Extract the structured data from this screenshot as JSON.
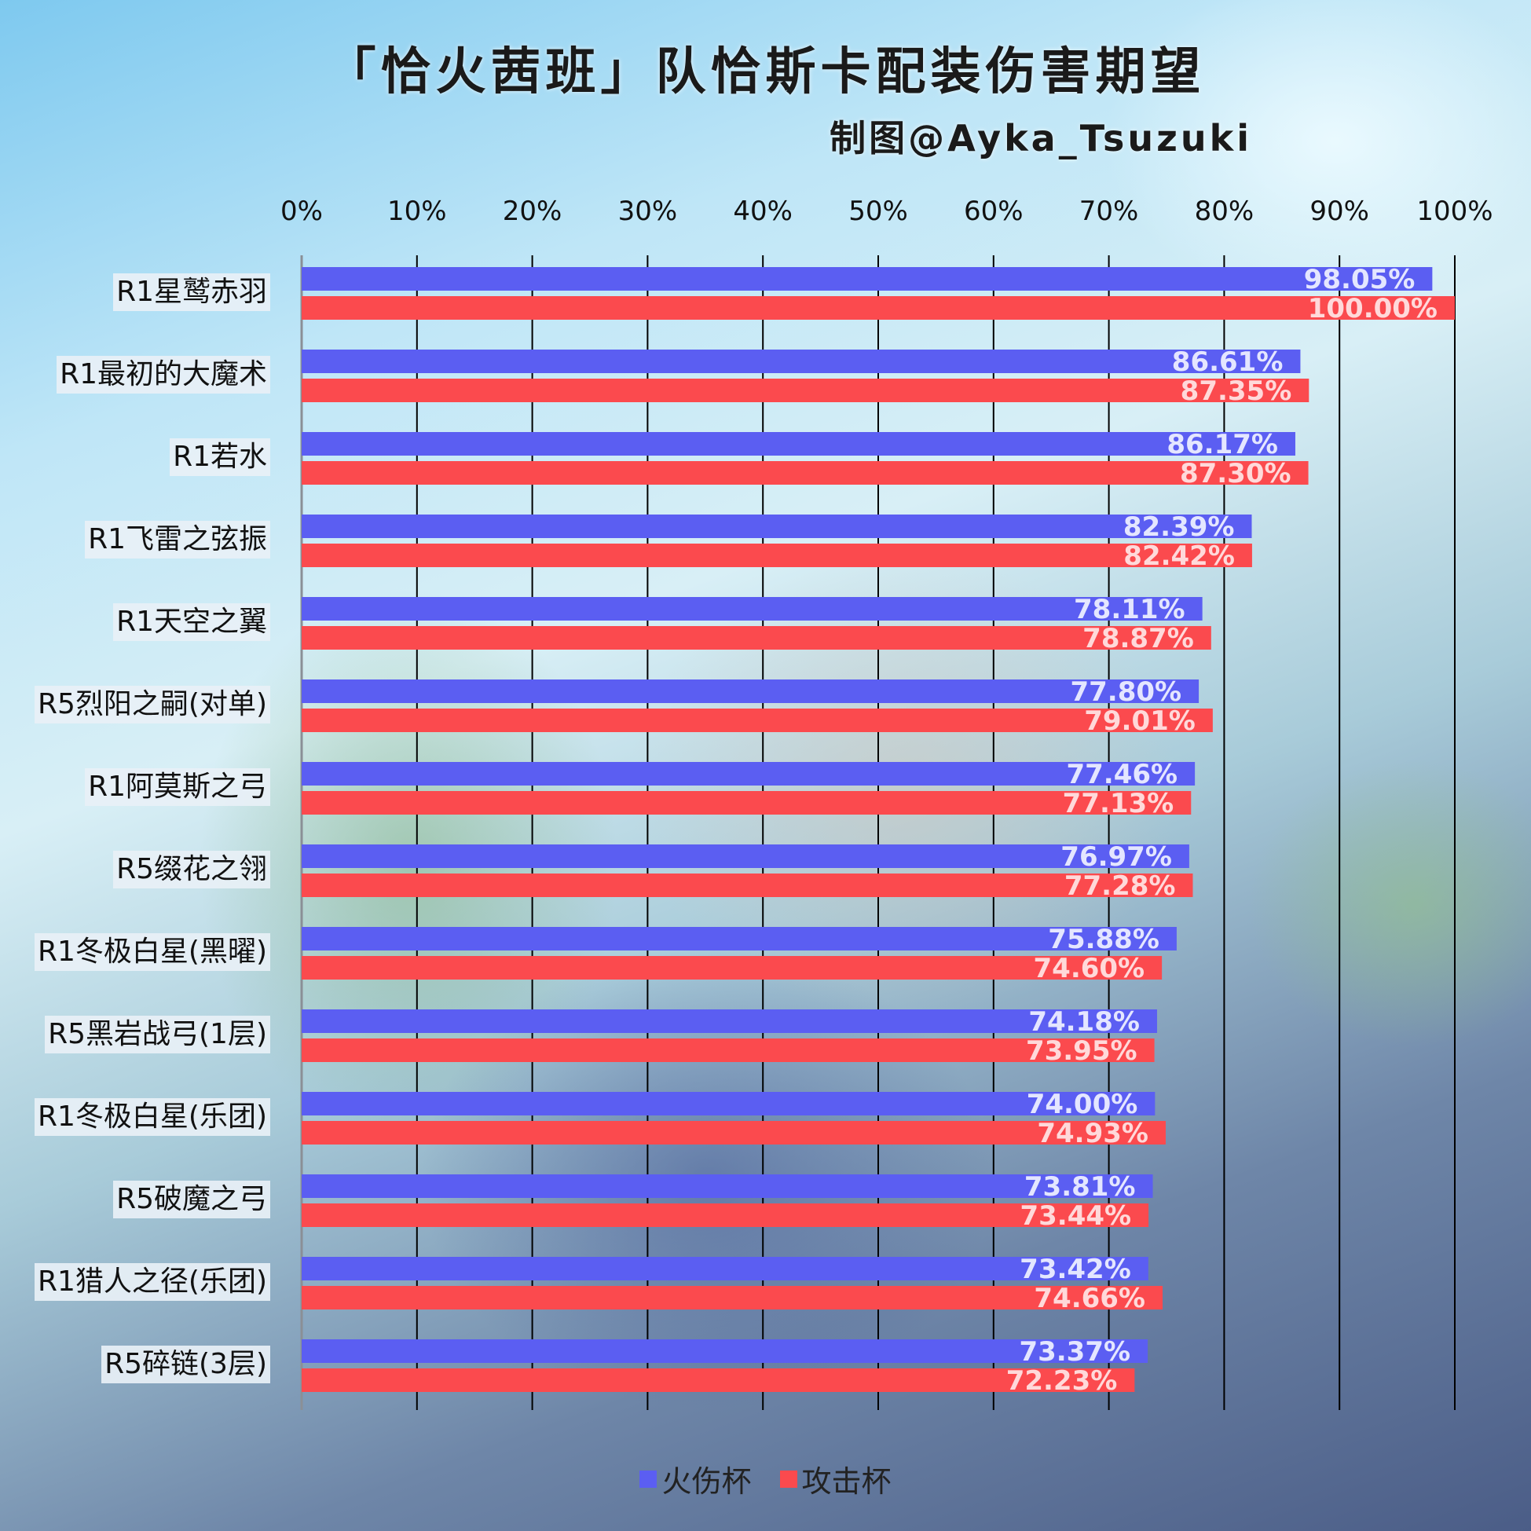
{
  "title": "「恰火茜班」队恰斯卡配装伤害期望",
  "author": "制图@Ayka_Tsuzuki",
  "colors": {
    "fire_cup": "#5b5ef2",
    "atk_cup": "#fb4a4e",
    "grid": "#000000"
  },
  "chart_data": {
    "type": "bar",
    "orientation": "horizontal",
    "title": "「恰火茜班」队恰斯卡配装伤害期望",
    "xlim": [
      0,
      100
    ],
    "x_ticks": [
      "0%",
      "10%",
      "20%",
      "30%",
      "40%",
      "50%",
      "60%",
      "70%",
      "80%",
      "90%",
      "100%"
    ],
    "grid": "vertical",
    "legend_position": "bottom",
    "categories": [
      "R1星鹫赤羽",
      "R1最初的大魔术",
      "R1若水",
      "R1飞雷之弦振",
      "R1天空之翼",
      "R5烈阳之嗣(对单)",
      "R1阿莫斯之弓",
      "R5缀花之翎",
      "R1冬极白星(黑曜)",
      "R5黑岩战弓(1层)",
      "R1冬极白星(乐团)",
      "R5破魔之弓",
      "R1猎人之径(乐团)",
      "R5碎链(3层)"
    ],
    "series": [
      {
        "name": "火伤杯",
        "color": "#5b5ef2",
        "values": [
          98.05,
          86.61,
          86.17,
          82.39,
          78.11,
          77.8,
          77.46,
          76.97,
          75.88,
          74.18,
          74.0,
          73.81,
          73.42,
          73.37
        ],
        "labels": [
          "98.05%",
          "86.61%",
          "86.17%",
          "82.39%",
          "78.11%",
          "77.80%",
          "77.46%",
          "76.97%",
          "75.88%",
          "74.18%",
          "74.00%",
          "73.81%",
          "73.42%",
          "73.37%"
        ]
      },
      {
        "name": "攻击杯",
        "color": "#fb4a4e",
        "values": [
          100.0,
          87.35,
          87.3,
          82.42,
          78.87,
          79.01,
          77.13,
          77.28,
          74.6,
          73.95,
          74.93,
          73.44,
          74.66,
          72.23
        ],
        "labels": [
          "100.00%",
          "87.35%",
          "87.30%",
          "82.42%",
          "78.87%",
          "79.01%",
          "77.13%",
          "77.28%",
          "74.60%",
          "73.95%",
          "74.93%",
          "73.44%",
          "74.66%",
          "72.23%"
        ]
      }
    ]
  }
}
